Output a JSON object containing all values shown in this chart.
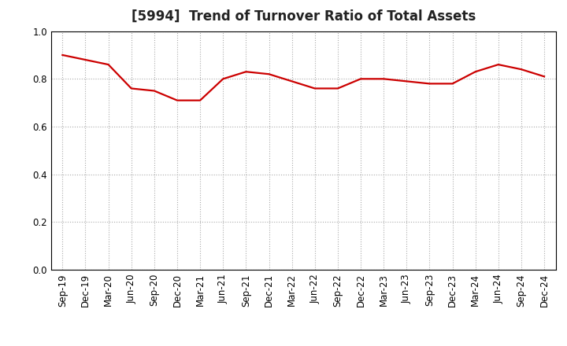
{
  "title": "[5994]  Trend of Turnover Ratio of Total Assets",
  "x_labels": [
    "Sep-19",
    "Dec-19",
    "Mar-20",
    "Jun-20",
    "Sep-20",
    "Dec-20",
    "Mar-21",
    "Jun-21",
    "Sep-21",
    "Dec-21",
    "Mar-22",
    "Jun-22",
    "Sep-22",
    "Dec-22",
    "Mar-23",
    "Jun-23",
    "Sep-23",
    "Dec-23",
    "Mar-24",
    "Jun-24",
    "Sep-24",
    "Dec-24"
  ],
  "y_values": [
    0.9,
    0.88,
    0.86,
    0.76,
    0.75,
    0.71,
    0.71,
    0.8,
    0.83,
    0.82,
    0.79,
    0.76,
    0.76,
    0.8,
    0.8,
    0.79,
    0.78,
    0.78,
    0.83,
    0.86,
    0.84,
    0.81
  ],
  "line_color": "#cc0000",
  "line_width": 1.6,
  "ylim": [
    0.0,
    1.0
  ],
  "yticks": [
    0.0,
    0.2,
    0.4,
    0.6,
    0.8,
    1.0
  ],
  "background_color": "#ffffff",
  "plot_bg_color": "#ffffff",
  "grid_color": "#aaaaaa",
  "grid_linestyle": ":",
  "grid_linewidth": 0.8,
  "title_fontsize": 12,
  "tick_fontsize": 8.5,
  "title_color": "#222222",
  "spine_color": "#000000",
  "spine_linewidth": 0.8
}
